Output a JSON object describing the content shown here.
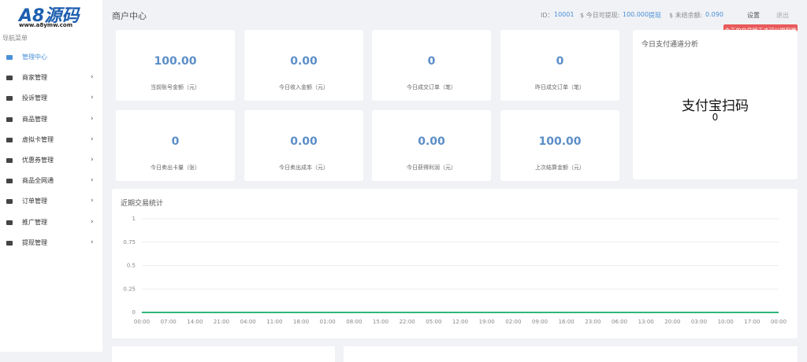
{
  "sidebar": {
    "logo": "A8源码",
    "logo_sub": "www.a8ymw.com",
    "nav_title": "导航菜单",
    "items": [
      "管理中心",
      "商家管理",
      "投诉管理",
      "商品管理",
      "虚拟卡管理",
      "优惠券管理",
      "商品全网通",
      "订单管理",
      "推广管理",
      "提现管理"
    ]
  },
  "header": {
    "title": "商户中心",
    "id_label": "ID：",
    "id_value": "10001",
    "withdraw_label": "$ 今日可提现:",
    "withdraw_value": "100.000",
    "withdraw_link": "提现",
    "balance_label": "$ 未结余额:",
    "balance_value": "0.090",
    "settings": "设置",
    "logout": "退出",
    "tooltip": "今天的交易明天才可以提现哦"
  },
  "cards": [
    {
      "value": "100.00",
      "label": "当前账号金额（元）"
    },
    {
      "value": "0.00",
      "label": "今日收入金额（元）"
    },
    {
      "value": "0",
      "label": "今日成交订单（笔）"
    },
    {
      "value": "0",
      "label": "昨日成交订单（笔）"
    },
    {
      "value": "0",
      "label": "今日卖出卡量（张）"
    },
    {
      "value": "0.00",
      "label": "今日卖出成本（元）"
    },
    {
      "value": "0.00",
      "label": "今日获得利润（元）"
    },
    {
      "value": "100.00",
      "label": "上次结算金额（元）"
    }
  ],
  "channel": {
    "title": "今日支付通道分析",
    "name": "支付宝扫码",
    "value": "0"
  },
  "chart_data": {
    "type": "line",
    "title": "近期交易统计",
    "color": "#2fb67a",
    "categories": [
      "00:00",
      "07:00",
      "14:00",
      "21:00",
      "04:00",
      "11:00",
      "18:00",
      "01:00",
      "08:00",
      "15:00",
      "22:00",
      "05:00",
      "12:00",
      "19:00",
      "02:00",
      "09:00",
      "16:00",
      "23:00",
      "06:00",
      "13:00",
      "20:00",
      "03:00",
      "10:00",
      "17:00",
      "00:00"
    ],
    "values": [
      0,
      0,
      0,
      0,
      0,
      0,
      0,
      0,
      0,
      0,
      0,
      0,
      0,
      0,
      0,
      0,
      0,
      0,
      0,
      0,
      0,
      0,
      0,
      0,
      0
    ],
    "ylim": [
      0,
      1
    ],
    "yticks": [
      0,
      0.25,
      0.5,
      0.75,
      1
    ],
    "grid": true
  }
}
